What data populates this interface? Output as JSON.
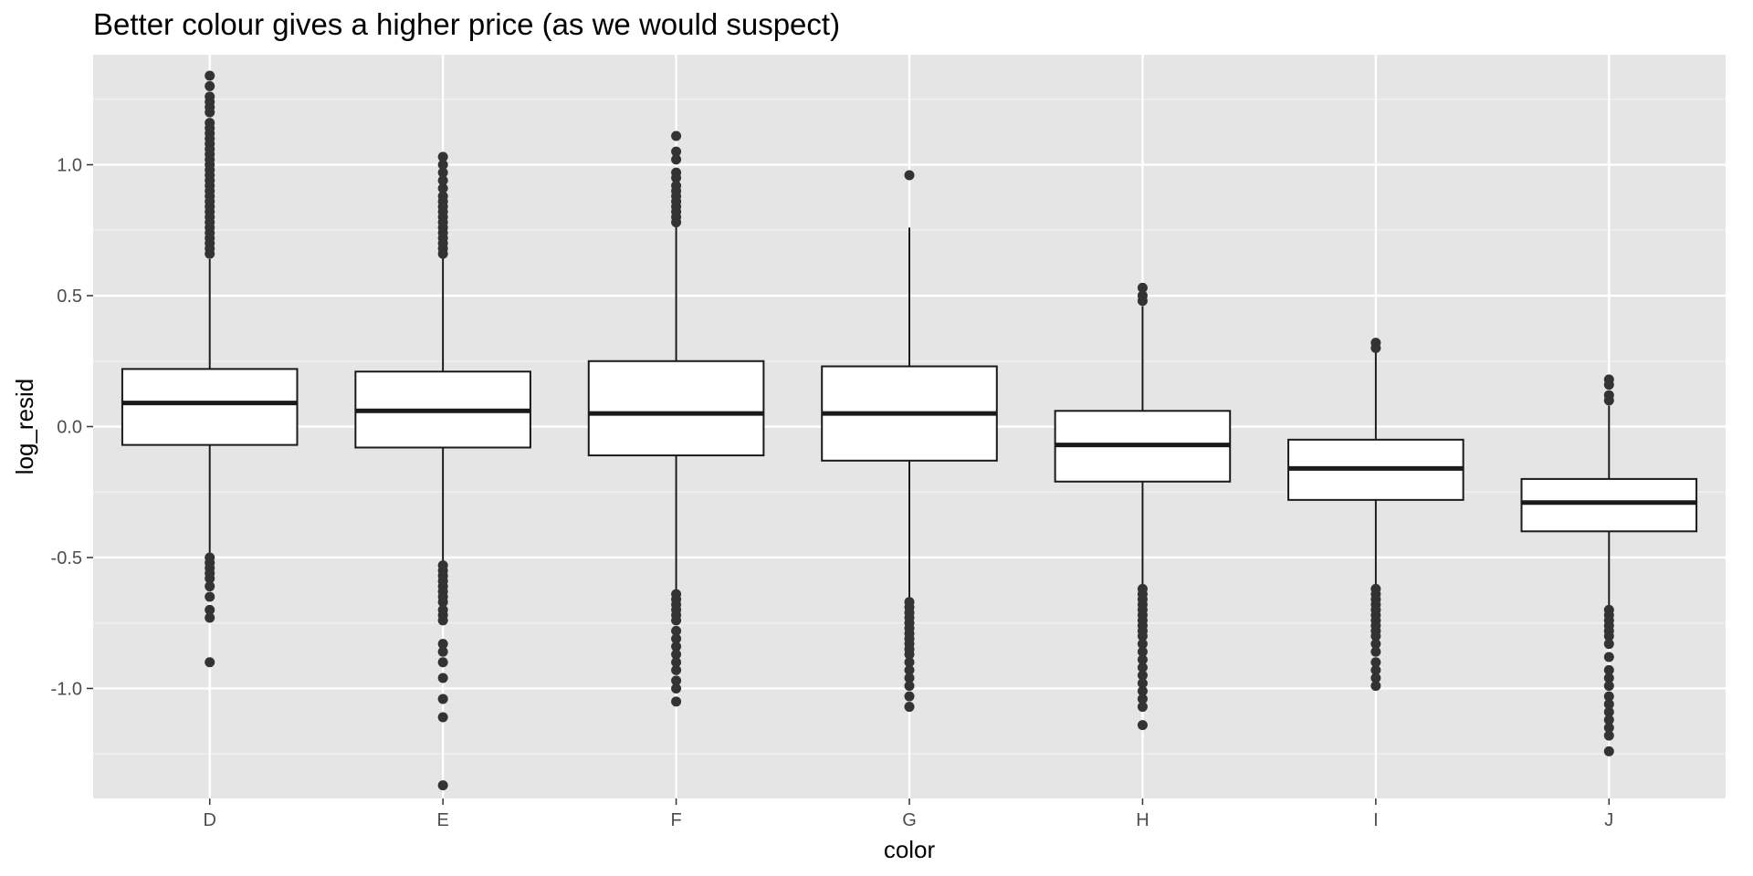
{
  "chart_data": {
    "type": "boxplot",
    "title": "Better colour gives a higher price (as we would suspect)",
    "xlabel": "color",
    "ylabel": "log_resid",
    "categories": [
      "D",
      "E",
      "F",
      "G",
      "H",
      "I",
      "J"
    ],
    "y_ticks": [
      {
        "value": -1.0,
        "label": "-1.0"
      },
      {
        "value": -0.5,
        "label": "-0.5"
      },
      {
        "value": 0.0,
        "label": "0.0"
      },
      {
        "value": 0.5,
        "label": "0.5"
      },
      {
        "value": 1.0,
        "label": "1.0"
      }
    ],
    "ylim": [
      -1.42,
      1.42
    ],
    "grid": true,
    "boxes": [
      {
        "category": "D",
        "lower_whisker": -0.49,
        "q1": -0.07,
        "median": 0.09,
        "q3": 0.22,
        "upper_whisker": 0.64,
        "outliers": [
          1.34,
          1.3,
          1.26,
          1.24,
          1.22,
          1.2,
          1.16,
          1.14,
          1.12,
          1.1,
          1.08,
          1.06,
          1.04,
          1.02,
          1.0,
          0.98,
          0.96,
          0.94,
          0.92,
          0.9,
          0.88,
          0.86,
          0.84,
          0.82,
          0.8,
          0.78,
          0.76,
          0.74,
          0.72,
          0.7,
          0.68,
          0.66,
          -0.5,
          -0.52,
          -0.54,
          -0.56,
          -0.58,
          -0.61,
          -0.65,
          -0.7,
          -0.73,
          -0.9
        ]
      },
      {
        "category": "E",
        "lower_whisker": -0.52,
        "q1": -0.08,
        "median": 0.06,
        "q3": 0.21,
        "upper_whisker": 0.65,
        "outliers": [
          1.03,
          1.0,
          0.97,
          0.94,
          0.91,
          0.88,
          0.86,
          0.84,
          0.82,
          0.8,
          0.78,
          0.76,
          0.74,
          0.72,
          0.7,
          0.68,
          0.66,
          -0.53,
          -0.55,
          -0.57,
          -0.59,
          -0.61,
          -0.63,
          -0.65,
          -0.67,
          -0.7,
          -0.72,
          -0.74,
          -0.83,
          -0.86,
          -0.9,
          -0.96,
          -1.04,
          -1.11,
          -1.37
        ]
      },
      {
        "category": "F",
        "lower_whisker": -0.63,
        "q1": -0.11,
        "median": 0.05,
        "q3": 0.25,
        "upper_whisker": 0.77,
        "outliers": [
          1.11,
          1.05,
          1.02,
          0.97,
          0.95,
          0.92,
          0.9,
          0.88,
          0.86,
          0.84,
          0.82,
          0.8,
          0.78,
          -0.64,
          -0.66,
          -0.68,
          -0.7,
          -0.72,
          -0.74,
          -0.78,
          -0.81,
          -0.84,
          -0.87,
          -0.9,
          -0.93,
          -0.97,
          -1.0,
          -1.05
        ]
      },
      {
        "category": "G",
        "lower_whisker": -0.66,
        "q1": -0.13,
        "median": 0.05,
        "q3": 0.23,
        "upper_whisker": 0.76,
        "outliers": [
          0.96,
          -0.67,
          -0.69,
          -0.71,
          -0.73,
          -0.75,
          -0.77,
          -0.79,
          -0.81,
          -0.83,
          -0.85,
          -0.87,
          -0.9,
          -0.93,
          -0.96,
          -0.99,
          -1.03,
          -1.07
        ]
      },
      {
        "category": "H",
        "lower_whisker": -0.61,
        "q1": -0.21,
        "median": -0.07,
        "q3": 0.06,
        "upper_whisker": 0.46,
        "outliers": [
          0.53,
          0.5,
          0.48,
          -0.62,
          -0.64,
          -0.66,
          -0.68,
          -0.7,
          -0.72,
          -0.74,
          -0.76,
          -0.78,
          -0.8,
          -0.83,
          -0.86,
          -0.89,
          -0.92,
          -0.95,
          -0.98,
          -1.01,
          -1.04,
          -1.07,
          -1.14
        ]
      },
      {
        "category": "I",
        "lower_whisker": -0.61,
        "q1": -0.28,
        "median": -0.16,
        "q3": -0.05,
        "upper_whisker": 0.29,
        "outliers": [
          0.32,
          0.3,
          -0.62,
          -0.64,
          -0.66,
          -0.68,
          -0.7,
          -0.72,
          -0.74,
          -0.76,
          -0.78,
          -0.8,
          -0.83,
          -0.86,
          -0.9,
          -0.93,
          -0.96,
          -0.99
        ]
      },
      {
        "category": "J",
        "lower_whisker": -0.69,
        "q1": -0.4,
        "median": -0.29,
        "q3": -0.2,
        "upper_whisker": 0.08,
        "outliers": [
          0.18,
          0.16,
          0.12,
          0.1,
          -0.7,
          -0.72,
          -0.74,
          -0.76,
          -0.78,
          -0.8,
          -0.83,
          -0.88,
          -0.93,
          -0.96,
          -0.99,
          -1.03,
          -1.06,
          -1.09,
          -1.12,
          -1.15,
          -1.18,
          -1.24
        ]
      }
    ],
    "colors": {
      "panel_background": "#e5e5e5",
      "grid_major": "#ffffff",
      "grid_minor": "#f2f2f2",
      "box_fill": "#ffffff",
      "box_stroke": "#1a1a1a",
      "outlier": "#333333",
      "tick_label": "#4d4d4d"
    }
  }
}
